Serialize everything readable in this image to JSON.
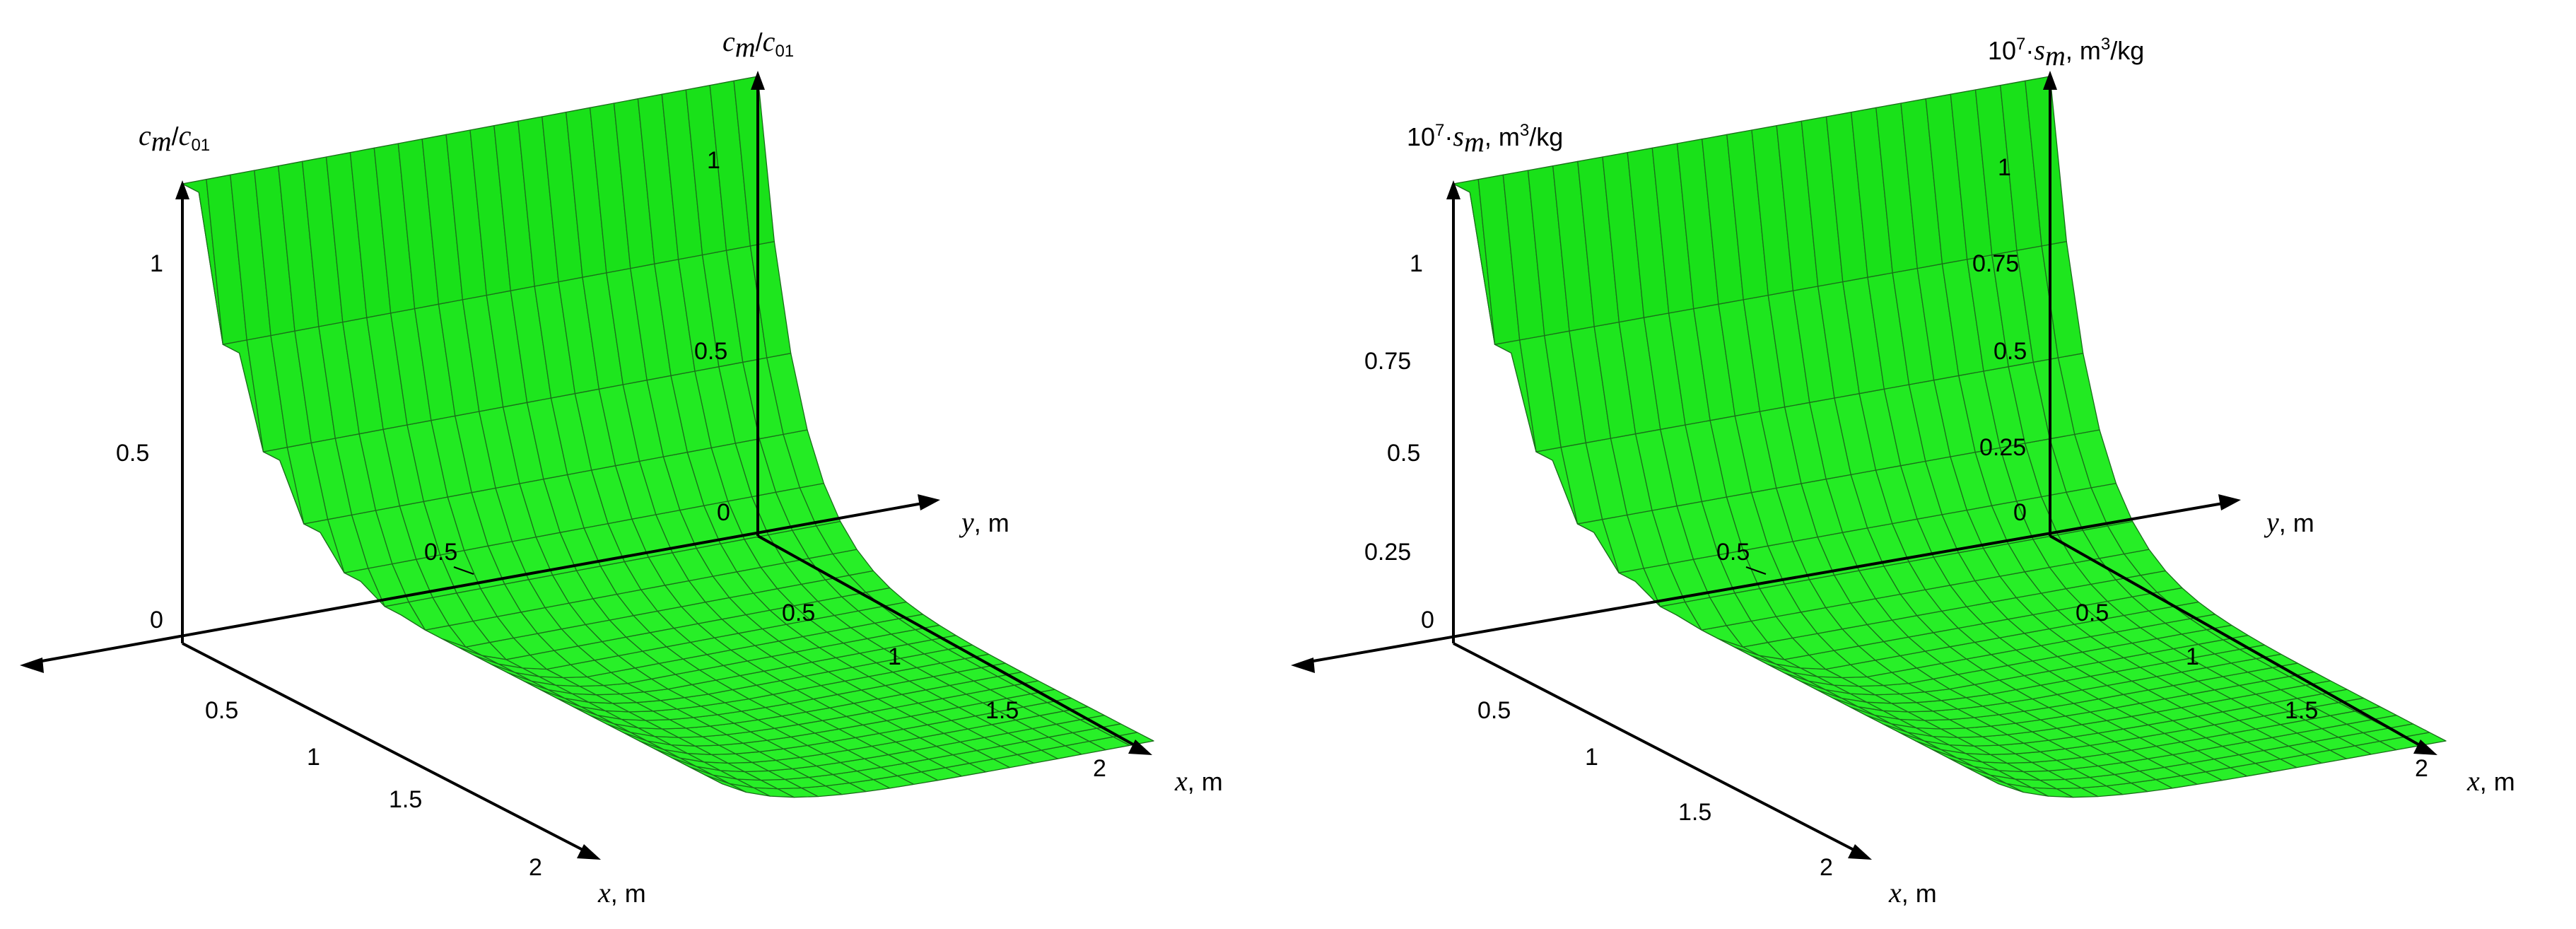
{
  "chart_data": [
    {
      "type": "surface",
      "z_label": {
        "var": "c",
        "var_sub": "m",
        "slash": "/",
        "den": "c",
        "den_sub": "01"
      },
      "x_label": {
        "var": "x",
        "unit": ", m"
      },
      "y_label": {
        "var": "y",
        "unit": ", m"
      },
      "x_ticks": [
        "0.5",
        "1",
        "1.5",
        "2"
      ],
      "y_ticks": [
        "0.5",
        "0.5",
        "1",
        "1.5",
        "2"
      ],
      "z_ticks": [
        "0",
        "0.5",
        "1"
      ],
      "x_range": [
        0,
        2
      ],
      "y_range": [
        0,
        2
      ],
      "z_range": [
        0,
        1
      ],
      "surface": {
        "formula": "max(exp(-x/0.2), exp(-y/0.2))",
        "peak_value": 1,
        "baseline": 0
      },
      "color": "#33ee33"
    },
    {
      "type": "surface",
      "z_label": {
        "prefix": "10",
        "prefix_sup": "7",
        "dot": "·",
        "var": "s",
        "var_sub": "m",
        "unit": ", m",
        "unit_sup": "3",
        "unit_rest": "/kg"
      },
      "x_label": {
        "var": "x",
        "unit": ", m"
      },
      "y_label": {
        "var": "y",
        "unit": ", m"
      },
      "x_ticks": [
        "0.5",
        "1",
        "1.5",
        "2"
      ],
      "y_ticks": [
        "0.5",
        "0.5",
        "1",
        "1.5",
        "2"
      ],
      "z_ticks": [
        "0",
        "0.25",
        "0.5",
        "0.75",
        "1"
      ],
      "x_range": [
        0,
        2
      ],
      "y_range": [
        0,
        2
      ],
      "z_range": [
        0,
        1
      ],
      "surface": {
        "formula": "max(exp(-x/0.2), exp(-y/0.2))",
        "peak_value": 1,
        "baseline": 0
      },
      "color": "#33ee33"
    }
  ]
}
